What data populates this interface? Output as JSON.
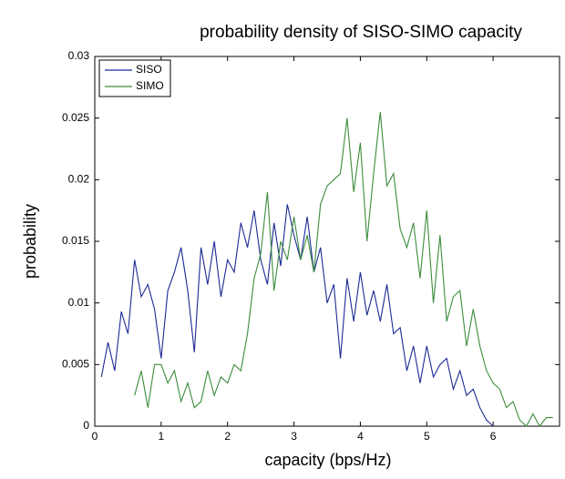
{
  "chart_data": {
    "type": "line",
    "title": "probability density of SISO-SIMO capacity",
    "x_label": "capacity (bps/Hz)",
    "y_label": "probability",
    "x": [
      0.1,
      0.2,
      0.3,
      0.4,
      0.5,
      0.6,
      0.7,
      0.8,
      0.9,
      1.0,
      1.1,
      1.2,
      1.3,
      1.4,
      1.5,
      1.6,
      1.7,
      1.8,
      1.9,
      2.0,
      2.1,
      2.2,
      2.3,
      2.4,
      2.5,
      2.6,
      2.7,
      2.8,
      2.9,
      3.0,
      3.1,
      3.2,
      3.3,
      3.4,
      3.5,
      3.6,
      3.7,
      3.8,
      3.9,
      4.0,
      4.1,
      4.2,
      4.3,
      4.4,
      4.5,
      4.6,
      4.7,
      4.8,
      4.9,
      5.0,
      5.1,
      5.2,
      5.3,
      5.4,
      5.5,
      5.6,
      5.7,
      5.8,
      5.9,
      6.0,
      6.1,
      6.2,
      6.3,
      6.4,
      6.5,
      6.6,
      6.7,
      6.8,
      6.9
    ],
    "series": [
      {
        "name": "SISO",
        "color": "#1c2a94",
        "values": [
          0.004,
          0.0068,
          0.0045,
          0.0093,
          0.0075,
          0.0135,
          0.0105,
          0.0115,
          0.0095,
          0.0055,
          0.011,
          0.0125,
          0.0145,
          0.011,
          0.006,
          0.0145,
          0.0115,
          0.015,
          0.0105,
          0.0135,
          0.0125,
          0.0165,
          0.0145,
          0.0175,
          0.0135,
          0.0115,
          0.0165,
          0.013,
          0.018,
          0.0155,
          0.0135,
          0.017,
          0.0125,
          0.0145,
          0.01,
          0.0115,
          0.0055,
          0.012,
          0.0085,
          0.0125,
          0.009,
          0.011,
          0.0085,
          0.0115,
          0.0075,
          0.008,
          0.0045,
          0.0065,
          0.0035,
          0.0065,
          0.004,
          0.005,
          0.0055,
          0.003,
          0.0045,
          0.0025,
          0.003,
          0.0015,
          0.0005,
          0,
          null,
          null,
          null,
          null,
          null,
          null,
          null,
          null,
          null
        ]
      },
      {
        "name": "SIMO",
        "color": "#3c8c3c",
        "values": [
          null,
          null,
          null,
          null,
          null,
          0.0025,
          0.0045,
          0.0015,
          0.005,
          0.005,
          0.0035,
          0.0045,
          0.002,
          0.0035,
          0.0015,
          0.002,
          0.0045,
          0.0025,
          0.004,
          0.0035,
          0.005,
          0.0045,
          0.0075,
          0.012,
          0.014,
          0.019,
          0.011,
          0.015,
          0.0135,
          0.017,
          0.0135,
          0.0155,
          0.0125,
          0.018,
          0.0195,
          0.02,
          0.0205,
          0.025,
          0.019,
          0.023,
          0.015,
          0.0205,
          0.0255,
          0.0195,
          0.0205,
          0.016,
          0.0145,
          0.0165,
          0.012,
          0.0175,
          0.01,
          0.0155,
          0.0085,
          0.0105,
          0.011,
          0.0065,
          0.0095,
          0.0065,
          0.0045,
          0.0035,
          0.003,
          0.0015,
          0.002,
          0.0005,
          0,
          0.001,
          0,
          0.0007,
          0.0007
        ]
      }
    ],
    "xlim": [
      0,
      7
    ],
    "xticks": [
      0,
      1,
      2,
      3,
      4,
      5,
      6
    ],
    "ylim": [
      0,
      0.03
    ],
    "yticks": [
      0,
      0.005,
      0.01,
      0.015,
      0.02,
      0.025,
      0.03
    ],
    "legend": "upper left"
  }
}
